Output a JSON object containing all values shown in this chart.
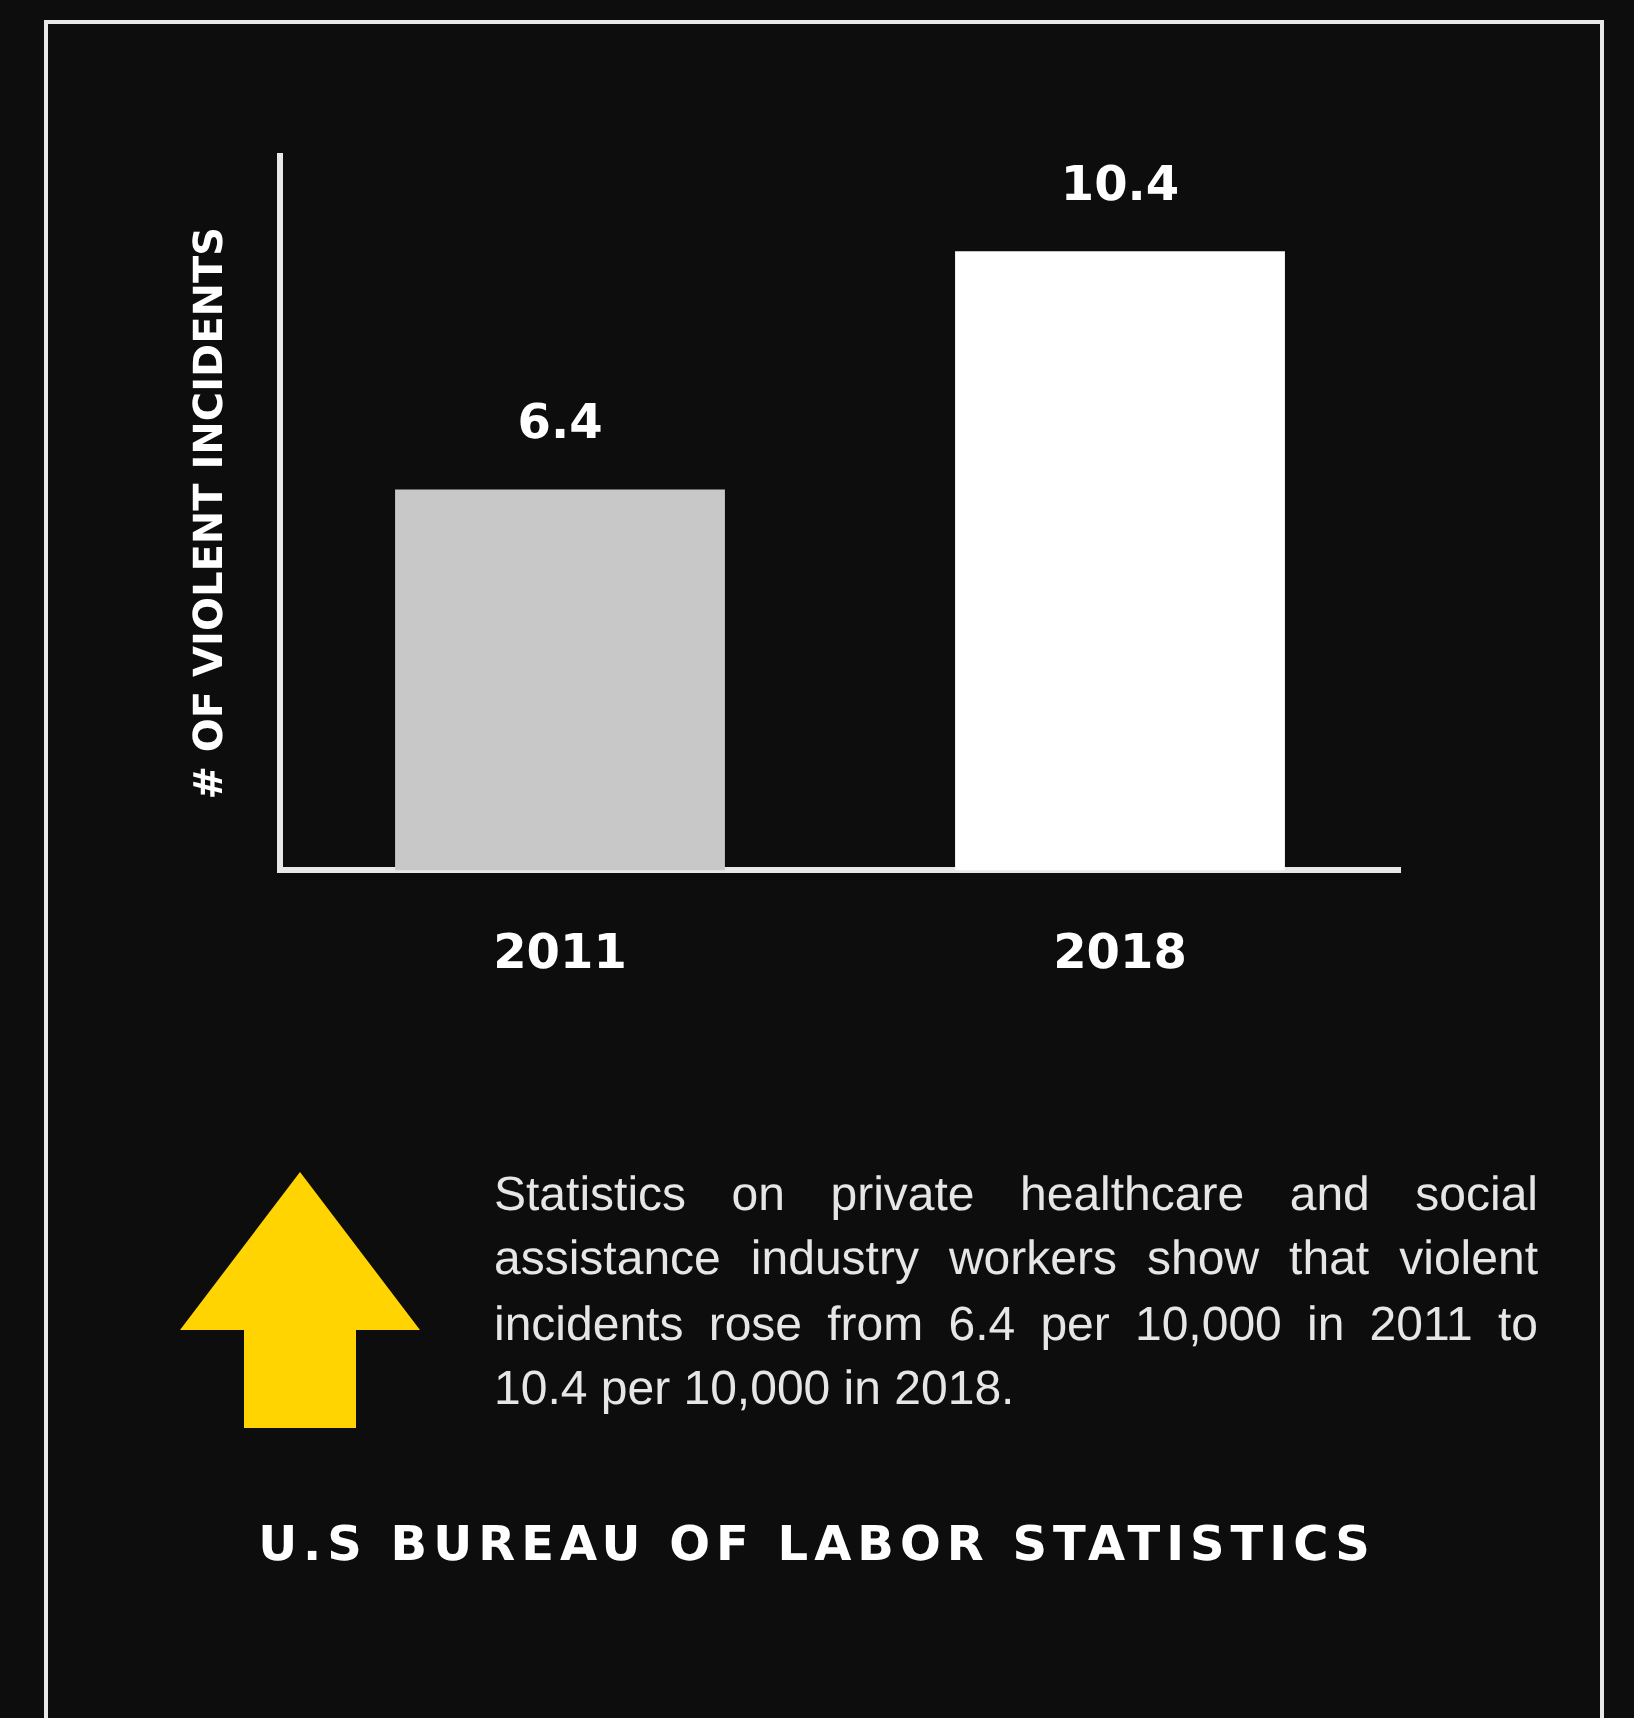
{
  "chart_data": {
    "type": "bar",
    "ylabel": "# OF VIOLENT INCIDENTS",
    "categories": [
      "2011",
      "2018"
    ],
    "values": [
      6.4,
      10.4
    ],
    "colors": [
      "#c8c8c8",
      "#ffffff"
    ],
    "data_labels": true,
    "grid": false,
    "legend": false,
    "tick_labels": "x",
    "annotations": [
      "Statistics on private healthcare and social assistance industry workers show that violent incidents rose from 6.4 per 10,000 in 2011 to 10.4 per 10,000 in 2018.",
      "U.S BUREAU OF LABOR STATISTICS"
    ]
  }
}
